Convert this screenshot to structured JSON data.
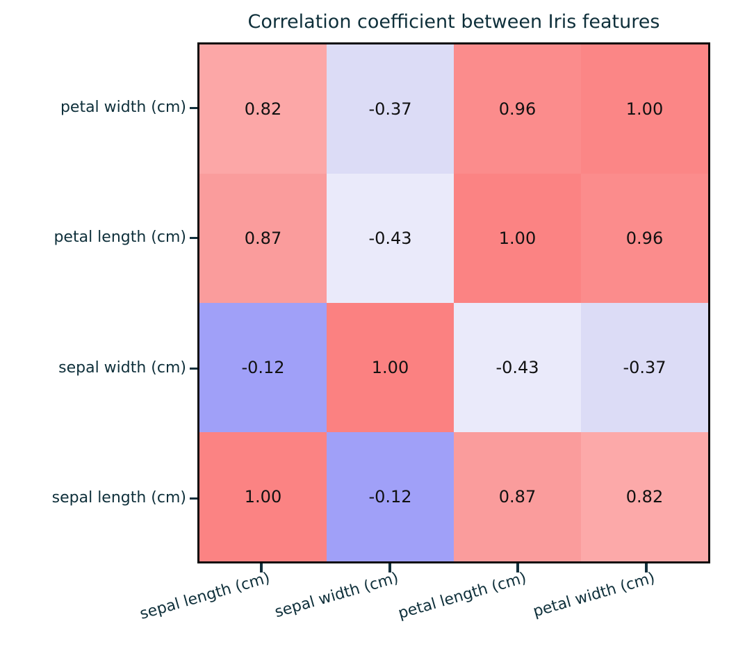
{
  "title": "Correlation coefficient between Iris features",
  "colors": {
    "label_text": "#0e2f3a",
    "tick_mark": "#12303c",
    "spine": "#0a0a0a",
    "cell_text": "#111111",
    "background": "#ffffff"
  },
  "x_labels": [
    "sepal length (cm)",
    "sepal width (cm)",
    "petal length (cm)",
    "petal width (cm)"
  ],
  "y_labels": [
    "petal width (cm)",
    "petal length (cm)",
    "sepal width (cm)",
    "sepal length (cm)"
  ],
  "cells": [
    {
      "text": "0.82",
      "bg": "#fca7a7"
    },
    {
      "text": "-0.37",
      "bg": "#dcdcf6"
    },
    {
      "text": "0.96",
      "bg": "#fb8c8c"
    },
    {
      "text": "1.00",
      "bg": "#fb8686"
    },
    {
      "text": "0.87",
      "bg": "#fa9c9c"
    },
    {
      "text": "-0.43",
      "bg": "#eaeafa"
    },
    {
      "text": "1.00",
      "bg": "#fb8383"
    },
    {
      "text": "0.96",
      "bg": "#fb8c8c"
    },
    {
      "text": "-0.12",
      "bg": "#a0a0f8"
    },
    {
      "text": "1.00",
      "bg": "#fb8181"
    },
    {
      "text": "-0.43",
      "bg": "#eaeafa"
    },
    {
      "text": "-0.37",
      "bg": "#dcdcf6"
    },
    {
      "text": "1.00",
      "bg": "#fb8383"
    },
    {
      "text": "-0.12",
      "bg": "#a0a0f8"
    },
    {
      "text": "0.87",
      "bg": "#fa9c9c"
    },
    {
      "text": "0.82",
      "bg": "#fca9a9"
    }
  ],
  "chart_data": {
    "type": "heatmap",
    "title": "Correlation coefficient between Iris features",
    "x_categories": [
      "sepal length (cm)",
      "sepal width (cm)",
      "petal length (cm)",
      "petal width (cm)"
    ],
    "y_categories_top_to_bottom": [
      "petal width (cm)",
      "petal length (cm)",
      "sepal width (cm)",
      "sepal length (cm)"
    ],
    "matrix_rows_top_to_bottom": [
      [
        0.82,
        -0.37,
        0.96,
        1.0
      ],
      [
        0.87,
        -0.43,
        1.0,
        0.96
      ],
      [
        -0.12,
        1.0,
        -0.43,
        -0.37
      ],
      [
        1.0,
        -0.12,
        0.87,
        0.82
      ]
    ],
    "value_format": "two decimals",
    "annotations_color": "black",
    "legend": "none",
    "grid": "off",
    "colormap_hint": "blue-white-red (negative blue, positive red)"
  }
}
